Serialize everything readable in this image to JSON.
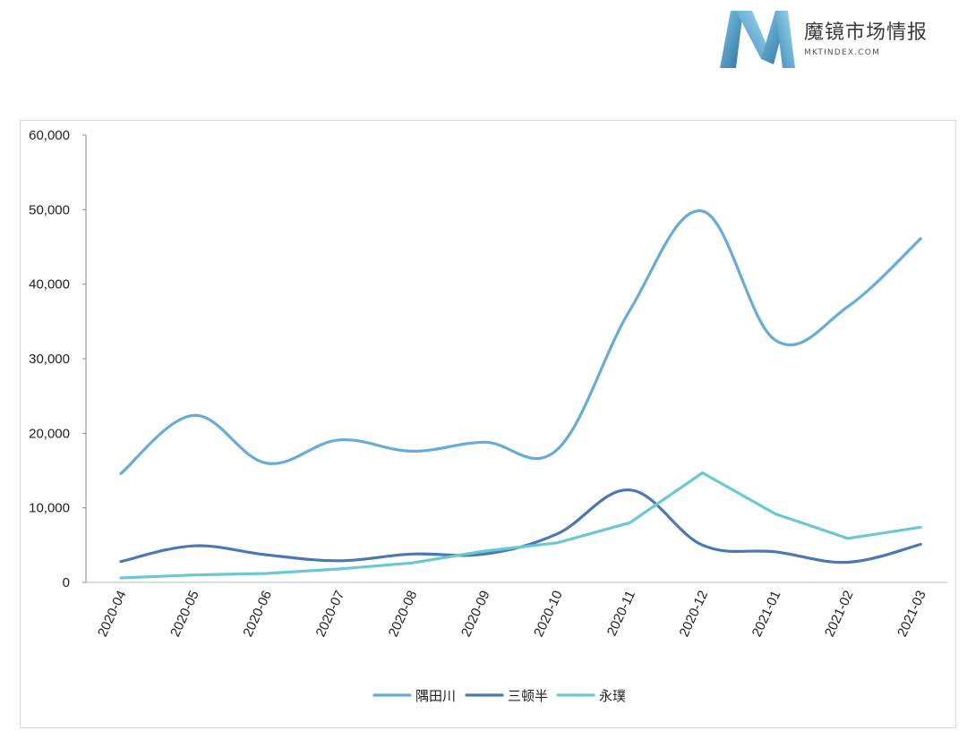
{
  "brand": {
    "name_cn": "魔镜市场情报",
    "site": "MKTINDEX.COM"
  },
  "chart_data": {
    "type": "line",
    "x": [
      "2020-04",
      "2020-05",
      "2020-06",
      "2020-07",
      "2020-08",
      "2020-09",
      "2020-10",
      "2020-11",
      "2020-12",
      "2021-01",
      "2021-02",
      "2021-03"
    ],
    "ylim": [
      0,
      60000
    ],
    "yticks": [
      0,
      10000,
      20000,
      30000,
      40000,
      50000,
      60000
    ],
    "ytick_labels": [
      "0",
      "10,000",
      "20,000",
      "30,000",
      "40,000",
      "50,000",
      "60,000"
    ],
    "grid": false,
    "legend_position": "bottom",
    "series": [
      {
        "name": "隅田川",
        "color": "#66acd6",
        "smooth": true,
        "values": [
          14600,
          22400,
          16000,
          19100,
          17600,
          18800,
          17800,
          36500,
          49800,
          32500,
          37000,
          46100
        ]
      },
      {
        "name": "三顿半",
        "color": "#4a78b5",
        "smooth": true,
        "values": [
          2800,
          4900,
          3700,
          2900,
          3800,
          3800,
          6500,
          12400,
          5000,
          4100,
          2700,
          5100
        ]
      },
      {
        "name": "永璞",
        "color": "#6cc8cf",
        "smooth": false,
        "values": [
          600,
          1000,
          1200,
          1800,
          2600,
          4200,
          5300,
          8000,
          14700,
          9200,
          5900,
          7400
        ]
      }
    ]
  }
}
